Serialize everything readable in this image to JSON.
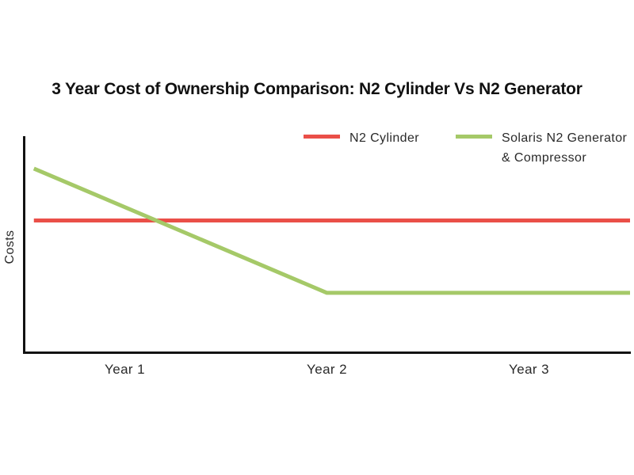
{
  "chart_data": {
    "type": "line",
    "title": "3 Year Cost of Ownership Comparison: N2 Cylinder Vs N2 Generator",
    "xlabel": "",
    "ylabel": "Costs",
    "x_tick_labels": [
      "Year 1",
      "Year 2",
      "Year 3"
    ],
    "x_axis_note": "categorical year bands 0-3, tick labels centered at 0.5 / 1.5 / 2.5",
    "y_axis_note": "no numeric scale shown; y values are relative cost (0 = axis, 1 = top of plot)",
    "ylim": [
      0,
      1
    ],
    "grid": false,
    "legend_position": "top",
    "axis_color": "#121212",
    "series": [
      {
        "name": "N2 Cylinder",
        "color": "#EA4F48",
        "stroke_width": 5,
        "points": [
          {
            "x": 0.05,
            "y": 0.61
          },
          {
            "x": 3.0,
            "y": 0.61
          }
        ]
      },
      {
        "name": "Solaris N2 Generator & Compressor",
        "color": "#A5C968",
        "stroke_width": 5,
        "points": [
          {
            "x": 0.05,
            "y": 0.85
          },
          {
            "x": 1.5,
            "y": 0.275
          },
          {
            "x": 3.0,
            "y": 0.275
          }
        ]
      }
    ]
  }
}
